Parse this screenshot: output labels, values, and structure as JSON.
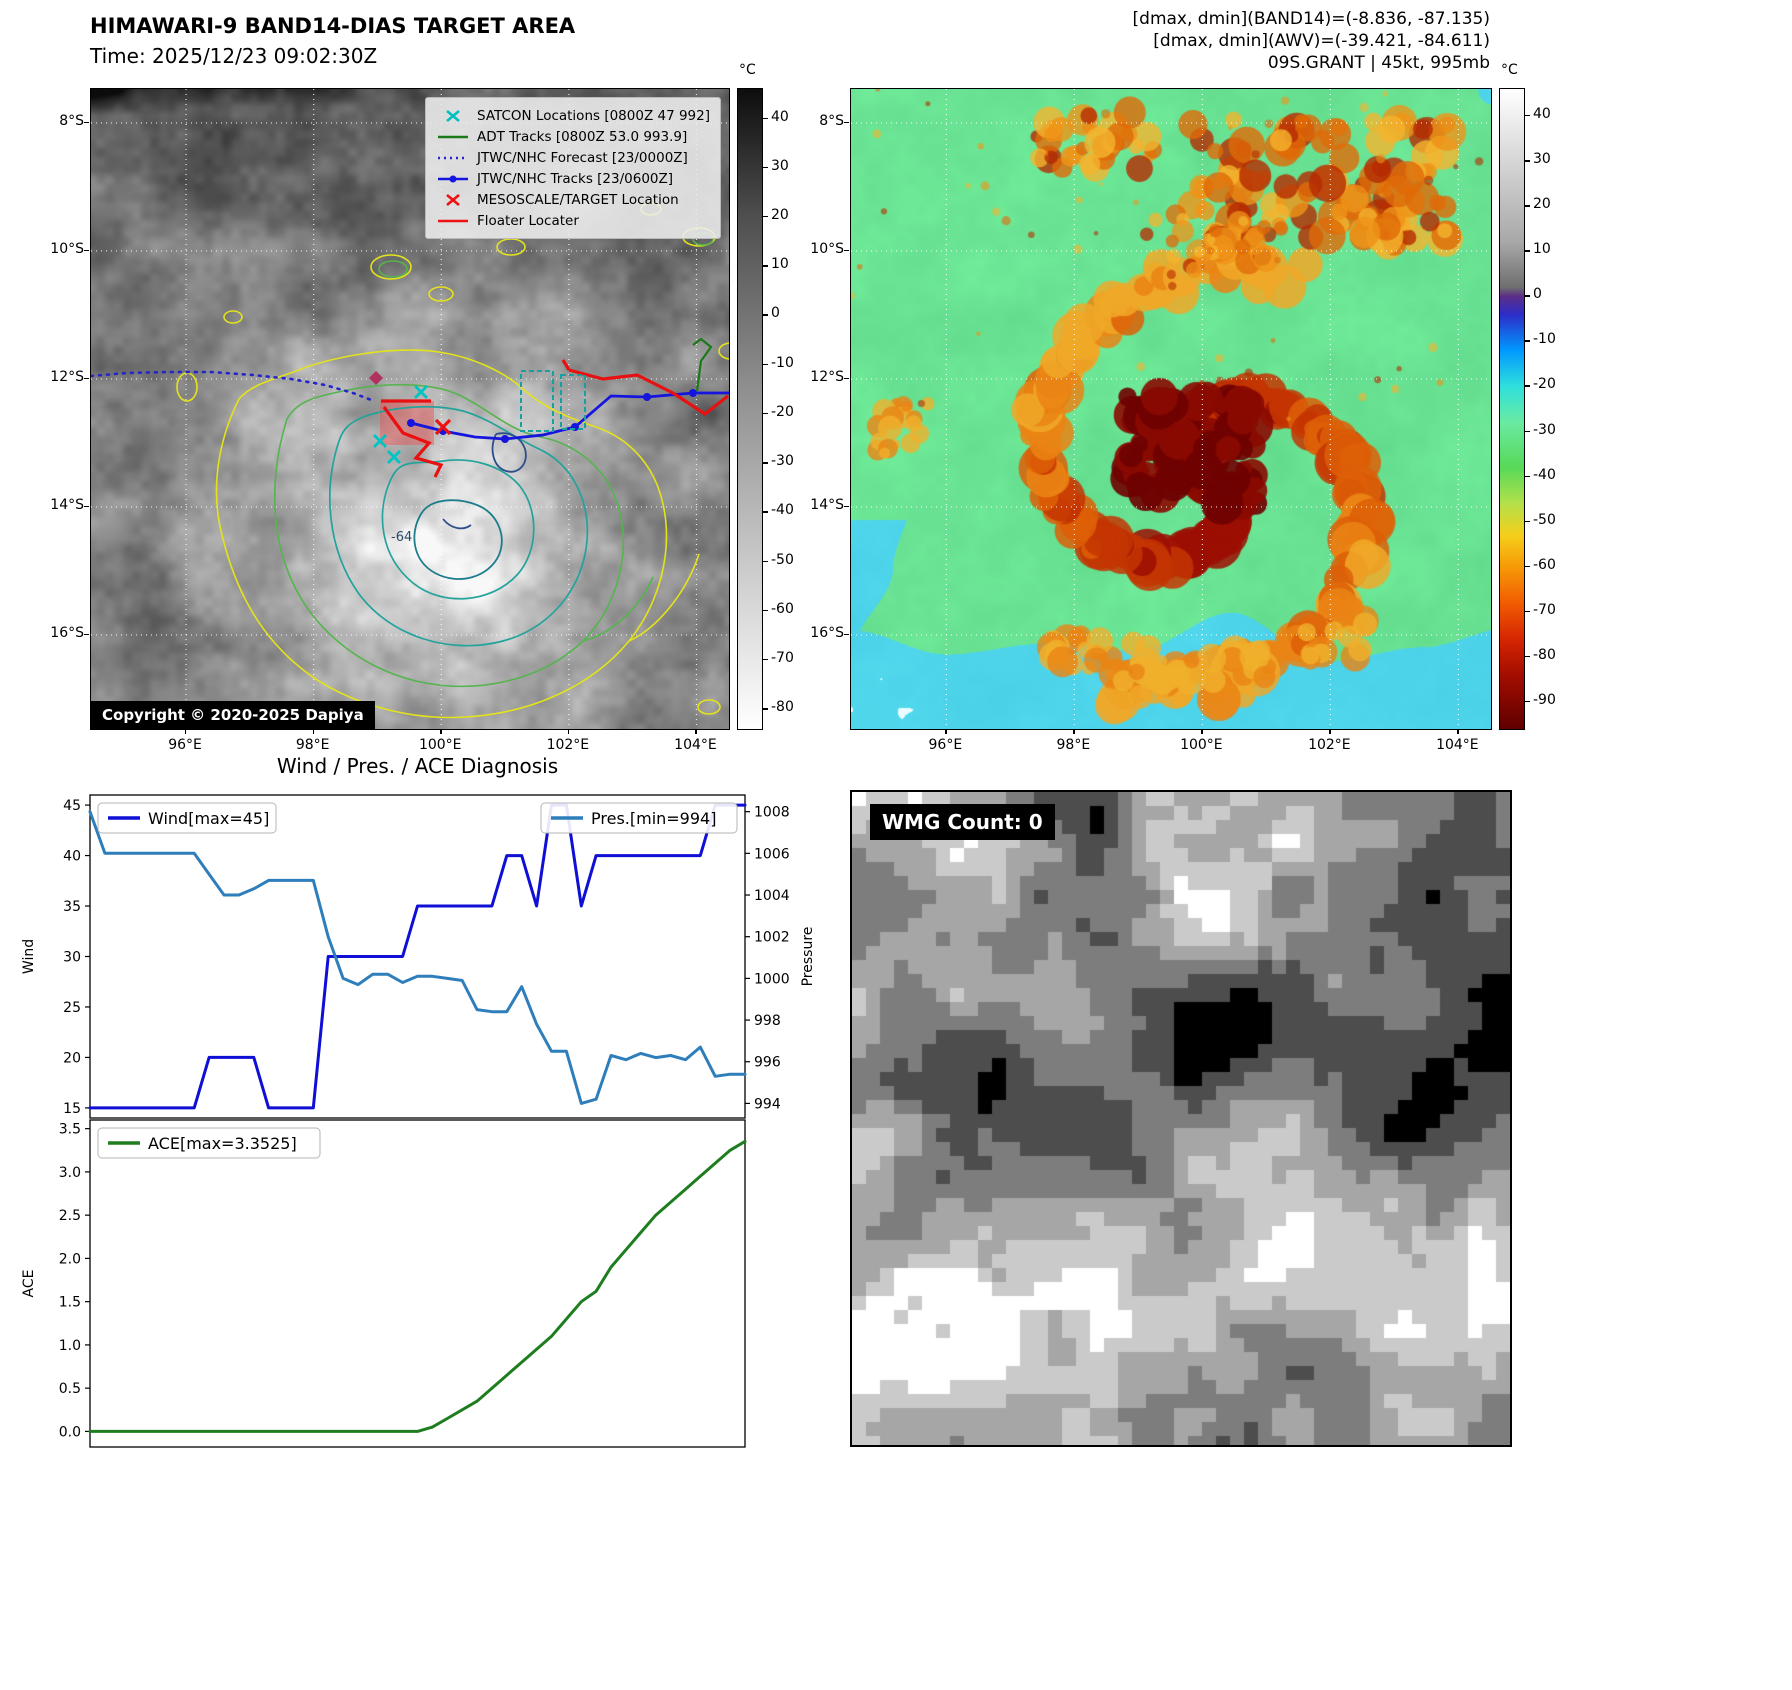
{
  "band14": {
    "title": "HIMAWARI-9 BAND14-DIAS TARGET AREA",
    "time_label": "Time: 2025/12/23 09:02:30Z",
    "copyright": "Copyright © 2020-2025 Dapiya",
    "contour_label": "-64",
    "lat_ticks": [
      "8°S",
      "10°S",
      "12°S",
      "14°S",
      "16°S"
    ],
    "lon_ticks": [
      "96°E",
      "98°E",
      "100°E",
      "102°E",
      "104°E"
    ],
    "legend": [
      {
        "label": "SATCON Locations [0800Z 47 992]",
        "marker": "x",
        "color": "#00bfbf"
      },
      {
        "label": "ADT Tracks [0800Z 53.0 993.9]",
        "marker": "line",
        "color": "#1a7a1a"
      },
      {
        "label": "JTWC/NHC Forecast [23/0000Z]",
        "marker": "dotted",
        "color": "#2525cd"
      },
      {
        "label": "JTWC/NHC Tracks [23/0600Z]",
        "marker": "line-dot",
        "color": "#1515dd"
      },
      {
        "label": "MESOSCALE/TARGET Location",
        "marker": "x",
        "color": "#ee1111"
      },
      {
        "label": "Floater Locater",
        "marker": "line",
        "color": "#ee1111"
      }
    ],
    "colorbar": {
      "unit": "°C",
      "vmax": 46,
      "vmin": -84,
      "ticks": [
        40,
        30,
        20,
        10,
        0,
        -10,
        -20,
        -30,
        -40,
        -50,
        -60,
        -70,
        -80
      ],
      "stops": [
        {
          "v": 46,
          "c": "#0d0d0d"
        },
        {
          "v": 20,
          "c": "#4f4f4f"
        },
        {
          "v": -15,
          "c": "#8f8f8f"
        },
        {
          "v": -50,
          "c": "#c9c9c9"
        },
        {
          "v": -84,
          "c": "#ffffff"
        }
      ]
    }
  },
  "awv": {
    "header_lines": [
      "[dmax, dmin](BAND14)=(-8.836, -87.135)",
      "[dmax, dmin](AWV)=(-39.421, -84.611)",
      "09S.GRANT | 45kt, 995mb"
    ],
    "lat_ticks": [
      "8°S",
      "10°S",
      "12°S",
      "14°S",
      "16°S"
    ],
    "lon_ticks": [
      "96°E",
      "98°E",
      "100°E",
      "102°E",
      "104°E"
    ],
    "colorbar": {
      "unit": "°C",
      "vmax": 46,
      "vmin": -96,
      "ticks": [
        40,
        30,
        20,
        10,
        0,
        -10,
        -20,
        -30,
        -40,
        -50,
        -60,
        -70,
        -80,
        -90
      ],
      "stops": [
        {
          "v": 46,
          "c": "#ffffff"
        },
        {
          "v": 12,
          "c": "#a8a8a8"
        },
        {
          "v": 2,
          "c": "#6f6f6f"
        },
        {
          "v": 0,
          "c": "#5c2d87"
        },
        {
          "v": -4,
          "c": "#2d2dc8"
        },
        {
          "v": -12,
          "c": "#0099ff"
        },
        {
          "v": -20,
          "c": "#2fe0dc"
        },
        {
          "v": -28,
          "c": "#69eaa2"
        },
        {
          "v": -38,
          "c": "#58d958"
        },
        {
          "v": -46,
          "c": "#b4e04a"
        },
        {
          "v": -53,
          "c": "#f5cf1b"
        },
        {
          "v": -60,
          "c": "#f69a06"
        },
        {
          "v": -68,
          "c": "#f25c02"
        },
        {
          "v": -76,
          "c": "#d62602"
        },
        {
          "v": -84,
          "c": "#a30d00"
        },
        {
          "v": -96,
          "c": "#5f0000"
        }
      ]
    }
  },
  "diagnosis": {
    "title": "Wind / Pres. / ACE Diagnosis"
  },
  "wmg": {
    "label": "WMG Count: 0"
  },
  "chart_data": [
    {
      "id": "wind_pres",
      "type": "line",
      "title": "Wind / Pres. / ACE Diagnosis",
      "ylabel": "Wind",
      "y2label": "Pressure",
      "ylim": [
        14,
        46
      ],
      "y2lim": [
        993.3,
        1008.8
      ],
      "yticks": [
        15,
        20,
        25,
        30,
        35,
        40,
        45
      ],
      "y2ticks": [
        994,
        996,
        998,
        1000,
        1002,
        1004,
        1006,
        1008
      ],
      "series": [
        {
          "name": "Wind[max=45]",
          "axis": "y",
          "color": "#0f0fd6",
          "values": [
            15,
            15,
            15,
            15,
            15,
            15,
            15,
            15,
            20,
            20,
            20,
            20,
            15,
            15,
            15,
            15,
            30,
            30,
            30,
            30,
            30,
            30,
            35,
            35,
            35,
            35,
            35,
            35,
            40,
            40,
            35,
            45,
            45,
            35,
            40,
            40,
            40,
            40,
            40,
            40,
            40,
            40,
            45,
            45,
            45
          ]
        },
        {
          "name": "Pres.[min=994]",
          "axis": "y2",
          "color": "#2e7ebb",
          "values": [
            1008,
            1006,
            1006,
            1006,
            1006,
            1006,
            1006,
            1006,
            1005,
            1004,
            1004,
            1004.3,
            1004.7,
            1004.7,
            1004.7,
            1004.7,
            1002,
            1000,
            999.7,
            1000.2,
            1000.2,
            999.8,
            1000.1,
            1000.1,
            1000,
            999.9,
            998.5,
            998.4,
            998.4,
            999.6,
            997.8,
            996.5,
            996.5,
            994,
            994.2,
            996.3,
            996.1,
            996.4,
            996.2,
            996.3,
            996.1,
            996.7,
            995.3,
            995.4,
            995.4
          ]
        }
      ],
      "legend_position": [
        "upper-left",
        "upper-right"
      ],
      "grid": false
    },
    {
      "id": "ace",
      "type": "line",
      "ylabel": "ACE",
      "ylim": [
        -0.18,
        3.6
      ],
      "yticks": [
        0,
        0.5,
        1,
        1.5,
        2,
        2.5,
        3,
        3.5
      ],
      "ytick_decimals": 1,
      "series": [
        {
          "name": "ACE[max=3.3525]",
          "axis": "y",
          "color": "#1e7d1e",
          "values": [
            0,
            0,
            0,
            0,
            0,
            0,
            0,
            0,
            0,
            0,
            0,
            0,
            0,
            0,
            0,
            0,
            0,
            0,
            0,
            0,
            0,
            0,
            0,
            0.05,
            0.15,
            0.25,
            0.35,
            0.5,
            0.65,
            0.8,
            0.95,
            1.1,
            1.3,
            1.5,
            1.62,
            1.9,
            2.1,
            2.3,
            2.5,
            2.65,
            2.8,
            2.95,
            3.1,
            3.25,
            3.3525
          ]
        }
      ],
      "legend_position": [
        "upper-left"
      ],
      "grid": false
    }
  ]
}
